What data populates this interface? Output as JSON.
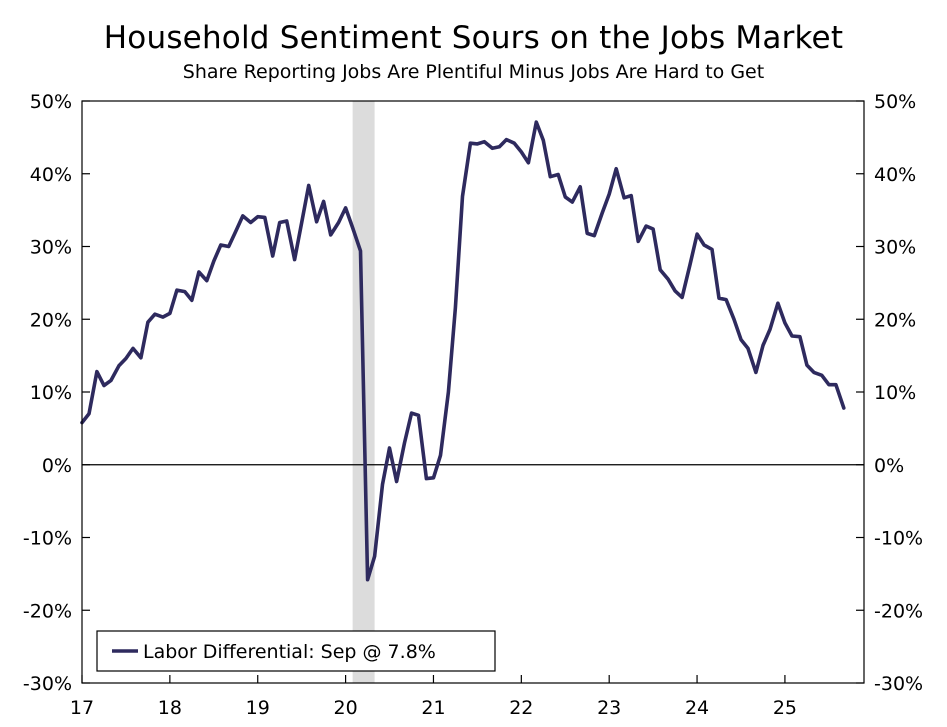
{
  "chart_data": {
    "type": "line",
    "title": "Household Sentiment Sours on the Jobs Market",
    "subtitle": "Share Reporting Jobs Are Plentiful Minus Jobs Are Hard to Get",
    "xlabel": "",
    "ylabel": "",
    "x_range": [
      2017.0,
      2025.9
    ],
    "x_ticks": [
      {
        "value": 2017,
        "label": "17"
      },
      {
        "value": 2018,
        "label": "18"
      },
      {
        "value": 2019,
        "label": "19"
      },
      {
        "value": 2020,
        "label": "20"
      },
      {
        "value": 2021,
        "label": "21"
      },
      {
        "value": 2022,
        "label": "22"
      },
      {
        "value": 2023,
        "label": "23"
      },
      {
        "value": 2024,
        "label": "24"
      },
      {
        "value": 2025,
        "label": "25"
      }
    ],
    "ylim": [
      -30,
      50
    ],
    "y_ticks": [
      {
        "value": 50,
        "label": "50%"
      },
      {
        "value": 40,
        "label": "40%"
      },
      {
        "value": 30,
        "label": "30%"
      },
      {
        "value": 20,
        "label": "20%"
      },
      {
        "value": 10,
        "label": "10%"
      },
      {
        "value": 0,
        "label": "0%"
      },
      {
        "value": -10,
        "label": "-10%"
      },
      {
        "value": -20,
        "label": "-20%"
      },
      {
        "value": -30,
        "label": "-30%"
      }
    ],
    "grid": false,
    "legend_position": "bottom-left",
    "recession_shading": {
      "start": 2020.08,
      "end": 2020.33,
      "color": "#dcdcdc"
    },
    "zero_line": true,
    "series": [
      {
        "name": "Labor Differential: Sep @ 7.8%",
        "color": "#2e2a5e",
        "x": [
          2017.0,
          2017.08,
          2017.17,
          2017.25,
          2017.33,
          2017.42,
          2017.5,
          2017.58,
          2017.67,
          2017.75,
          2017.83,
          2017.92,
          2018.0,
          2018.08,
          2018.17,
          2018.25,
          2018.33,
          2018.42,
          2018.5,
          2018.58,
          2018.67,
          2018.75,
          2018.83,
          2018.92,
          2019.0,
          2019.08,
          2019.17,
          2019.25,
          2019.33,
          2019.42,
          2019.5,
          2019.58,
          2019.67,
          2019.75,
          2019.83,
          2019.92,
          2020.0,
          2020.08,
          2020.17,
          2020.25,
          2020.33,
          2020.42,
          2020.5,
          2020.58,
          2020.67,
          2020.75,
          2020.83,
          2020.92,
          2021.0,
          2021.08,
          2021.17,
          2021.25,
          2021.33,
          2021.42,
          2021.5,
          2021.58,
          2021.67,
          2021.75,
          2021.83,
          2021.92,
          2022.0,
          2022.08,
          2022.17,
          2022.25,
          2022.33,
          2022.42,
          2022.5,
          2022.58,
          2022.67,
          2022.75,
          2022.83,
          2022.92,
          2023.0,
          2023.08,
          2023.17,
          2023.25,
          2023.33,
          2023.42,
          2023.5,
          2023.58,
          2023.67,
          2023.75,
          2023.83,
          2023.92,
          2024.0,
          2024.08,
          2024.17,
          2024.25,
          2024.33,
          2024.42,
          2024.5,
          2024.58,
          2024.67,
          2024.75,
          2024.83,
          2024.92,
          2025.0,
          2025.08,
          2025.17,
          2025.25,
          2025.33,
          2025.42,
          2025.5,
          2025.58,
          2025.67
        ],
        "values": [
          5.8,
          7.0,
          12.8,
          10.9,
          11.6,
          13.6,
          14.6,
          16.0,
          14.7,
          19.6,
          20.7,
          20.3,
          20.8,
          24.0,
          23.8,
          22.6,
          26.5,
          25.3,
          28.0,
          30.2,
          30.0,
          32.1,
          34.2,
          33.3,
          34.1,
          34.0,
          28.7,
          33.3,
          33.5,
          28.2,
          33.3,
          38.4,
          33.4,
          36.2,
          31.6,
          33.3,
          35.3,
          32.6,
          29.4,
          -15.8,
          -12.6,
          -2.7,
          2.3,
          -2.3,
          3.0,
          7.1,
          6.8,
          -1.9,
          -1.8,
          1.3,
          10.0,
          21.6,
          36.9,
          44.2,
          44.1,
          44.4,
          43.5,
          43.7,
          44.7,
          44.2,
          43.0,
          41.5,
          47.1,
          44.6,
          39.6,
          39.9,
          36.8,
          36.1,
          38.2,
          31.8,
          31.5,
          34.6,
          37.2,
          40.7,
          36.7,
          37.0,
          30.7,
          32.8,
          32.4,
          26.8,
          25.5,
          23.9,
          23.0,
          27.5,
          31.7,
          30.2,
          29.6,
          22.9,
          22.7,
          20.0,
          17.2,
          16.0,
          12.7,
          16.4,
          18.6,
          22.2,
          19.5,
          17.7,
          17.6,
          13.7,
          12.7,
          12.3,
          11.0,
          11.0,
          7.8
        ]
      }
    ]
  }
}
